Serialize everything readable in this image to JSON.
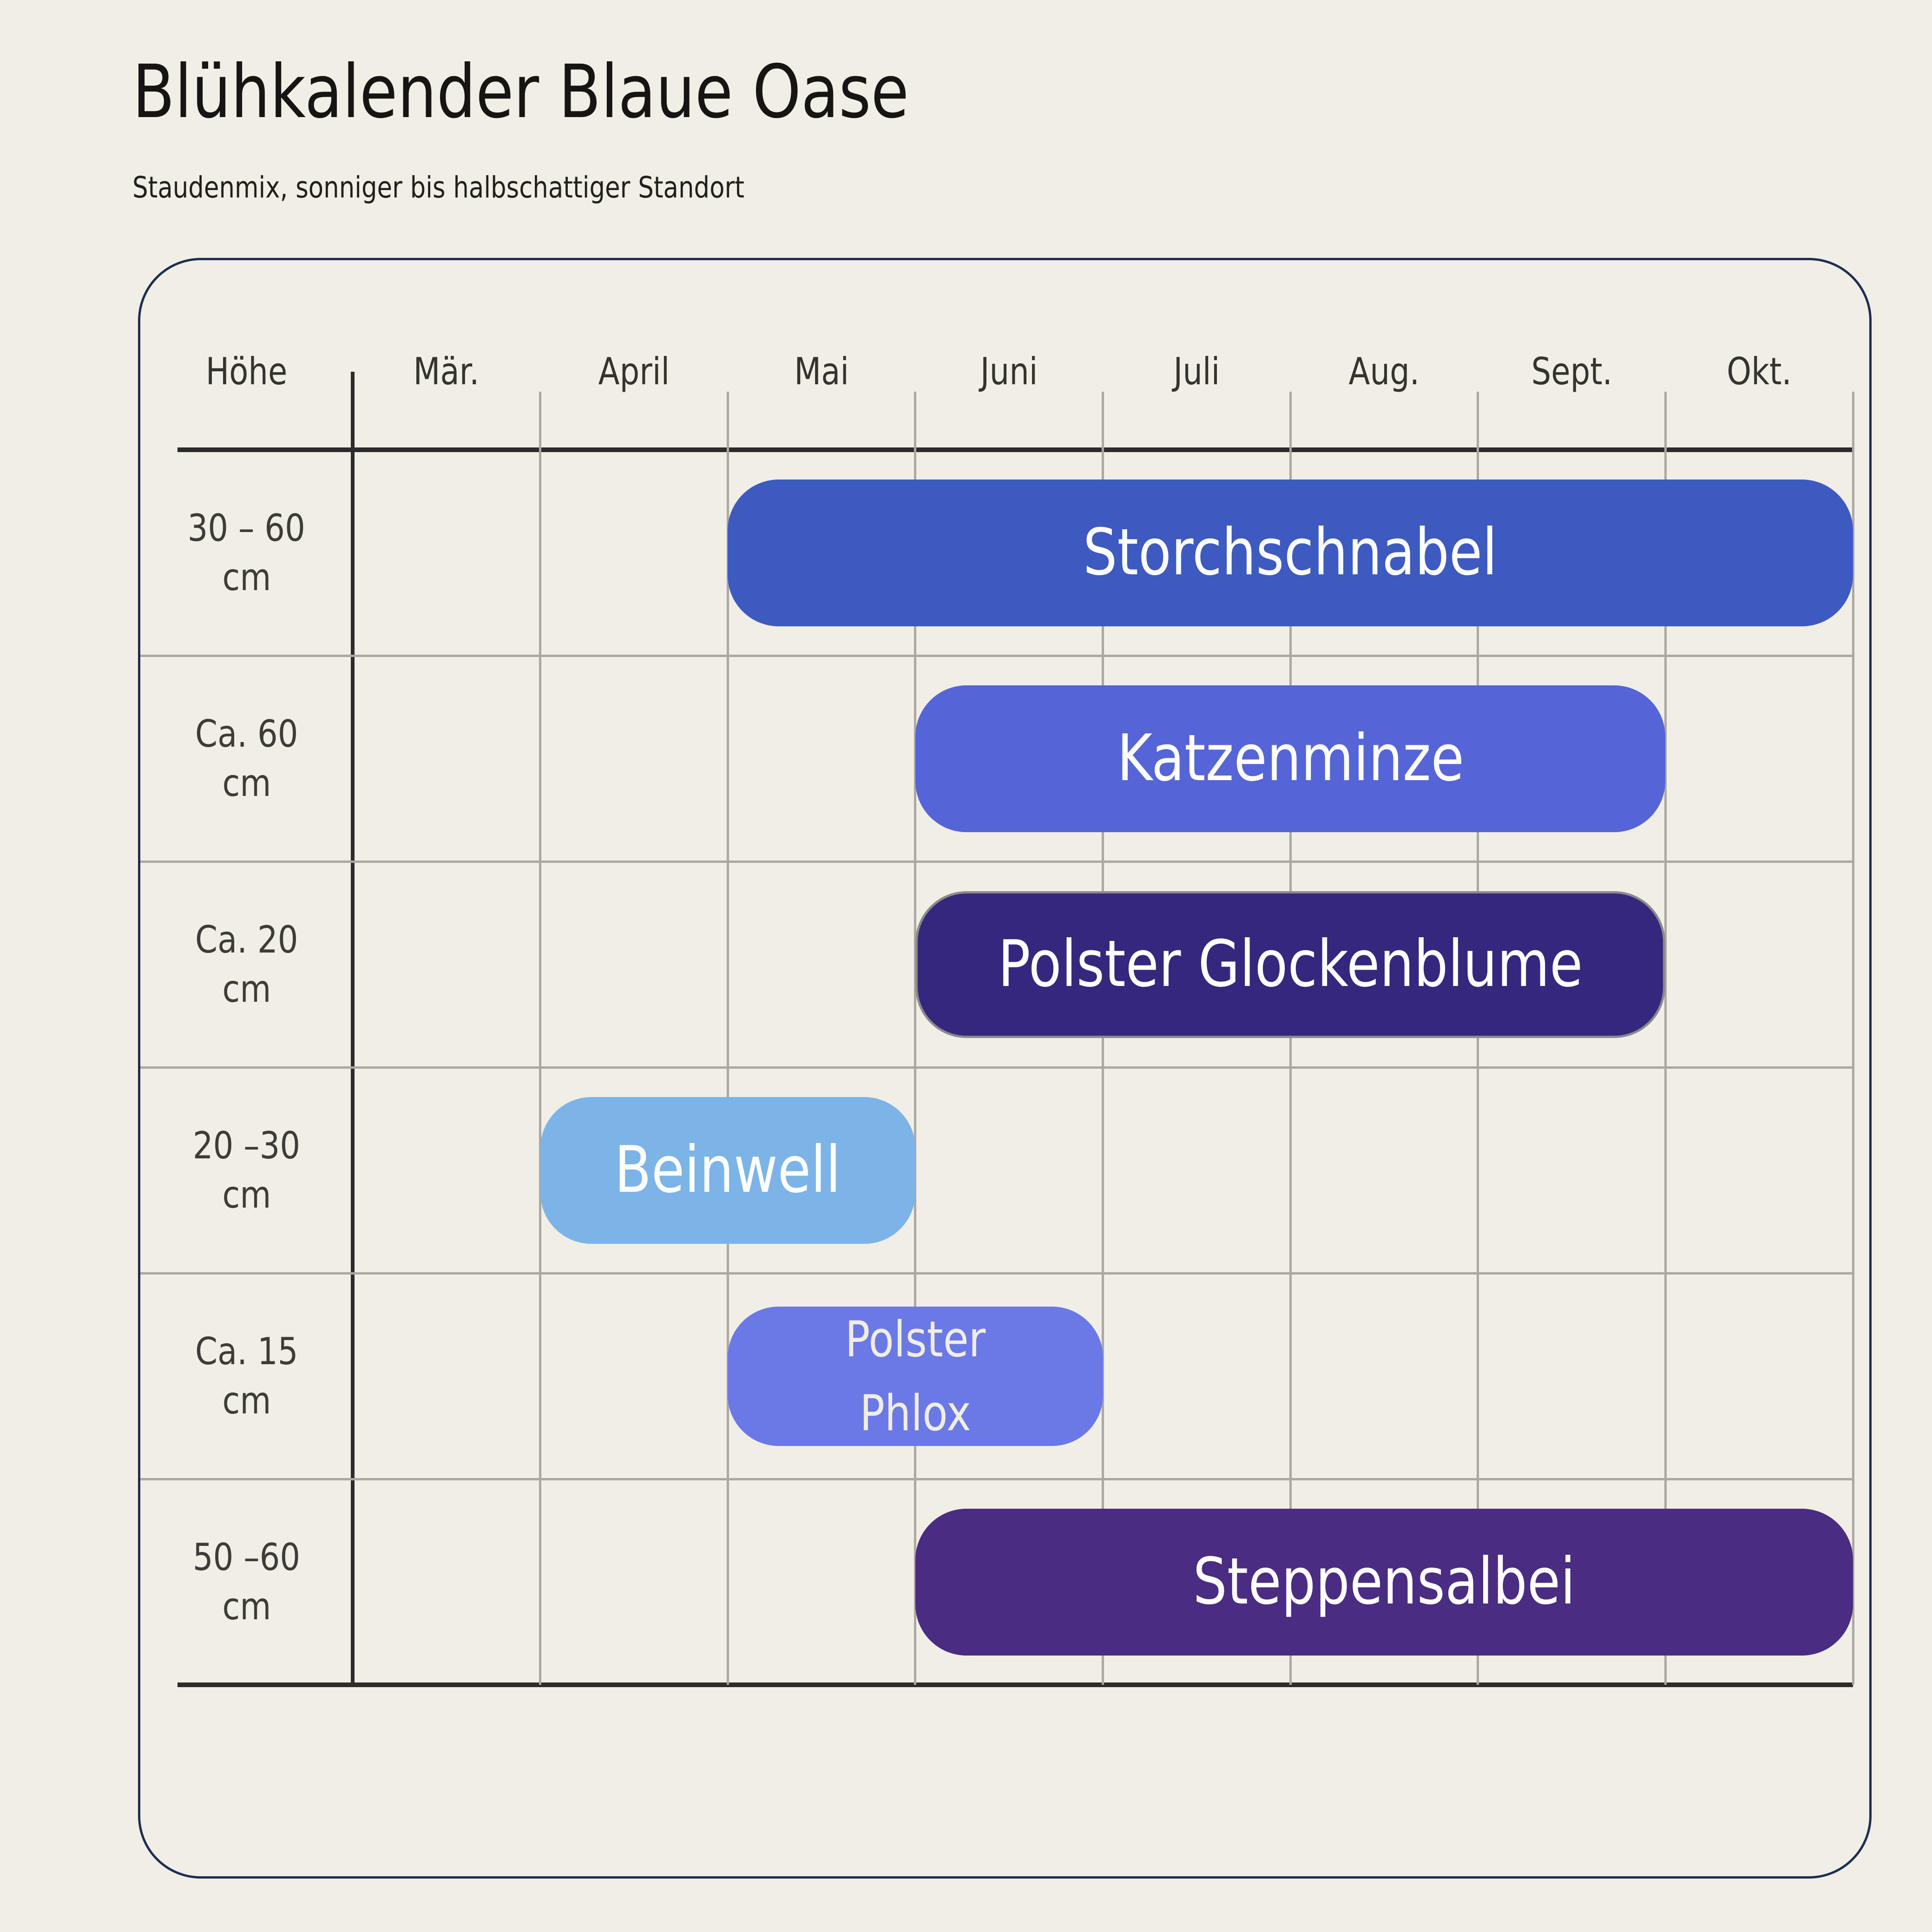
{
  "palette": {
    "background": "#F1EEE6",
    "panel_border": "#1D2D52",
    "axis_line": "#2E2C2A",
    "grid_line": "#ABA8A3",
    "title_color": "#171513",
    "subtitle_color": "#21201D",
    "header_label_color": "#35332F",
    "row_label_color": "#3E3C38"
  },
  "chart_data": {
    "type": "gantt",
    "title": "Blühkalender Blaue Oase",
    "subtitle": "Staudenmix, sonniger bis halbschattiger Standort",
    "height_column_header": "Höhe",
    "months": [
      "Mär.",
      "April",
      "Mai",
      "Juni",
      "Juli",
      "Aug.",
      "Sept.",
      "Okt."
    ],
    "grid": true,
    "legend_position": "none",
    "rows": [
      {
        "height_label": "30 – 60 cm",
        "height_lines": [
          "30 – 60",
          "cm"
        ],
        "plant": "Storchschnabel",
        "label_lines": [
          "Storchschnabel"
        ],
        "start": "Mai",
        "end": "Okt.",
        "color": "#3D5AC0",
        "text_color": "#FFFFFF",
        "border_color": null
      },
      {
        "height_label": "Ca. 60 cm",
        "height_lines": [
          "Ca. 60",
          "cm"
        ],
        "plant": "Katzenminze",
        "label_lines": [
          "Katzenminze"
        ],
        "start": "Juni",
        "end": "Sept.",
        "color": "#5565D8",
        "text_color": "#FFFFFF",
        "border_color": null
      },
      {
        "height_label": "Ca. 20 cm",
        "height_lines": [
          "Ca. 20",
          "cm"
        ],
        "plant": "Polster Glockenblume",
        "label_lines": [
          "Polster Glockenblume"
        ],
        "start": "Juni",
        "end": "Sept.",
        "color": "#35277E",
        "text_color": "#FFFFFF",
        "border_color": "#8A8A8A"
      },
      {
        "height_label": "20 –30 cm",
        "height_lines": [
          "20 –30",
          "cm"
        ],
        "plant": "Beinwell",
        "label_lines": [
          "Beinwell"
        ],
        "start": "April",
        "end": "Mai",
        "color": "#7CB4E8",
        "text_color": "#FFFFFF",
        "border_color": null
      },
      {
        "height_label": "Ca. 15 cm",
        "height_lines": [
          "Ca. 15",
          "cm"
        ],
        "plant": "Polster Phlox",
        "label_lines": [
          "Polster",
          "Phlox"
        ],
        "start": "Mai",
        "end": "Juni",
        "color": "#6B79E6",
        "text_color": "#F0EDE4",
        "border_color": null
      },
      {
        "height_label": "50 –60 cm",
        "height_lines": [
          "50 –60",
          "cm"
        ],
        "plant": "Steppensalbei",
        "label_lines": [
          "Steppensalbei"
        ],
        "start": "Juni",
        "end": "Okt.",
        "color": "#4A2C82",
        "text_color": "#FFFFFF",
        "border_color": null
      }
    ]
  }
}
